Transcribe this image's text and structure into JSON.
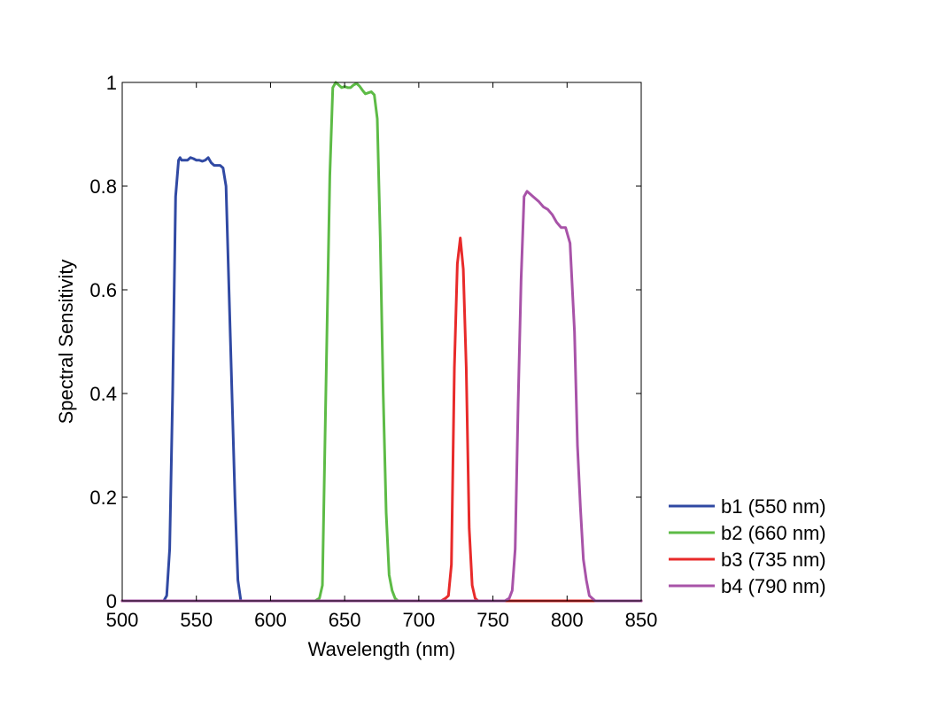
{
  "chart_data": {
    "type": "line",
    "title": "",
    "xlabel": "Wavelength (nm)",
    "ylabel": "Spectral Sensitivity",
    "xlim": [
      500,
      850
    ],
    "ylim": [
      0,
      1
    ],
    "x_ticks": [
      500,
      550,
      600,
      650,
      700,
      750,
      800,
      850
    ],
    "y_ticks": [
      0,
      0.2,
      0.4,
      0.6,
      0.8,
      1
    ],
    "x_tick_labels": [
      "500",
      "550",
      "600",
      "650",
      "700",
      "750",
      "800",
      "850"
    ],
    "y_tick_labels": [
      "0",
      "0.2",
      "0.4",
      "0.6",
      "0.8",
      "1"
    ],
    "grid": false,
    "legend_position": "outside bottom-right",
    "series": [
      {
        "name": "b1 (550 nm)",
        "color": "#3049a3",
        "x": [
          500,
          528,
          530,
          532,
          534,
          536,
          538,
          539,
          540,
          542,
          544,
          546,
          548,
          550,
          552,
          554,
          556,
          558,
          560,
          562,
          564,
          566,
          568,
          570,
          572,
          574,
          576,
          578,
          580,
          582,
          600,
          850
        ],
        "y": [
          0,
          0,
          0.01,
          0.1,
          0.4,
          0.78,
          0.85,
          0.855,
          0.85,
          0.85,
          0.85,
          0.855,
          0.853,
          0.85,
          0.85,
          0.848,
          0.85,
          0.855,
          0.845,
          0.84,
          0.84,
          0.84,
          0.835,
          0.8,
          0.6,
          0.4,
          0.2,
          0.04,
          0.0,
          0,
          0,
          0
        ]
      },
      {
        "name": "b2 (660 nm)",
        "color": "#5dbb46",
        "x": [
          500,
          630,
          633,
          635,
          637,
          640,
          642,
          644,
          646,
          648,
          650,
          652,
          654,
          656,
          658,
          660,
          662,
          664,
          666,
          668,
          670,
          672,
          674,
          676,
          678,
          680,
          682,
          684,
          686,
          688,
          700,
          850
        ],
        "y": [
          0,
          0,
          0.005,
          0.03,
          0.35,
          0.82,
          0.99,
          1.0,
          0.995,
          0.99,
          0.992,
          0.99,
          0.99,
          0.995,
          0.998,
          0.993,
          0.985,
          0.978,
          0.98,
          0.982,
          0.976,
          0.93,
          0.7,
          0.4,
          0.17,
          0.05,
          0.02,
          0.005,
          0,
          0,
          0,
          0
        ]
      },
      {
        "name": "b3 (735 nm)",
        "color": "#e82a2a",
        "x": [
          500,
          715,
          718,
          720,
          722,
          724,
          726,
          728,
          730,
          732,
          734,
          736,
          738,
          740,
          742,
          744,
          746,
          850
        ],
        "y": [
          0,
          0,
          0.005,
          0.01,
          0.07,
          0.45,
          0.65,
          0.7,
          0.64,
          0.45,
          0.14,
          0.03,
          0.005,
          0,
          0,
          0,
          0,
          0
        ]
      },
      {
        "name": "b4 (790 nm)",
        "color": "#a853a8",
        "x": [
          500,
          758,
          761,
          763,
          765,
          767,
          769,
          771,
          773,
          775,
          777,
          779,
          781,
          784,
          787,
          790,
          793,
          796,
          799,
          802,
          805,
          807,
          809,
          811,
          813,
          815,
          817,
          819,
          821,
          850
        ],
        "y": [
          0,
          0,
          0.005,
          0.02,
          0.1,
          0.38,
          0.62,
          0.78,
          0.79,
          0.785,
          0.78,
          0.775,
          0.77,
          0.76,
          0.755,
          0.745,
          0.73,
          0.72,
          0.72,
          0.69,
          0.52,
          0.3,
          0.18,
          0.08,
          0.04,
          0.01,
          0.005,
          0,
          0,
          0
        ]
      }
    ]
  }
}
